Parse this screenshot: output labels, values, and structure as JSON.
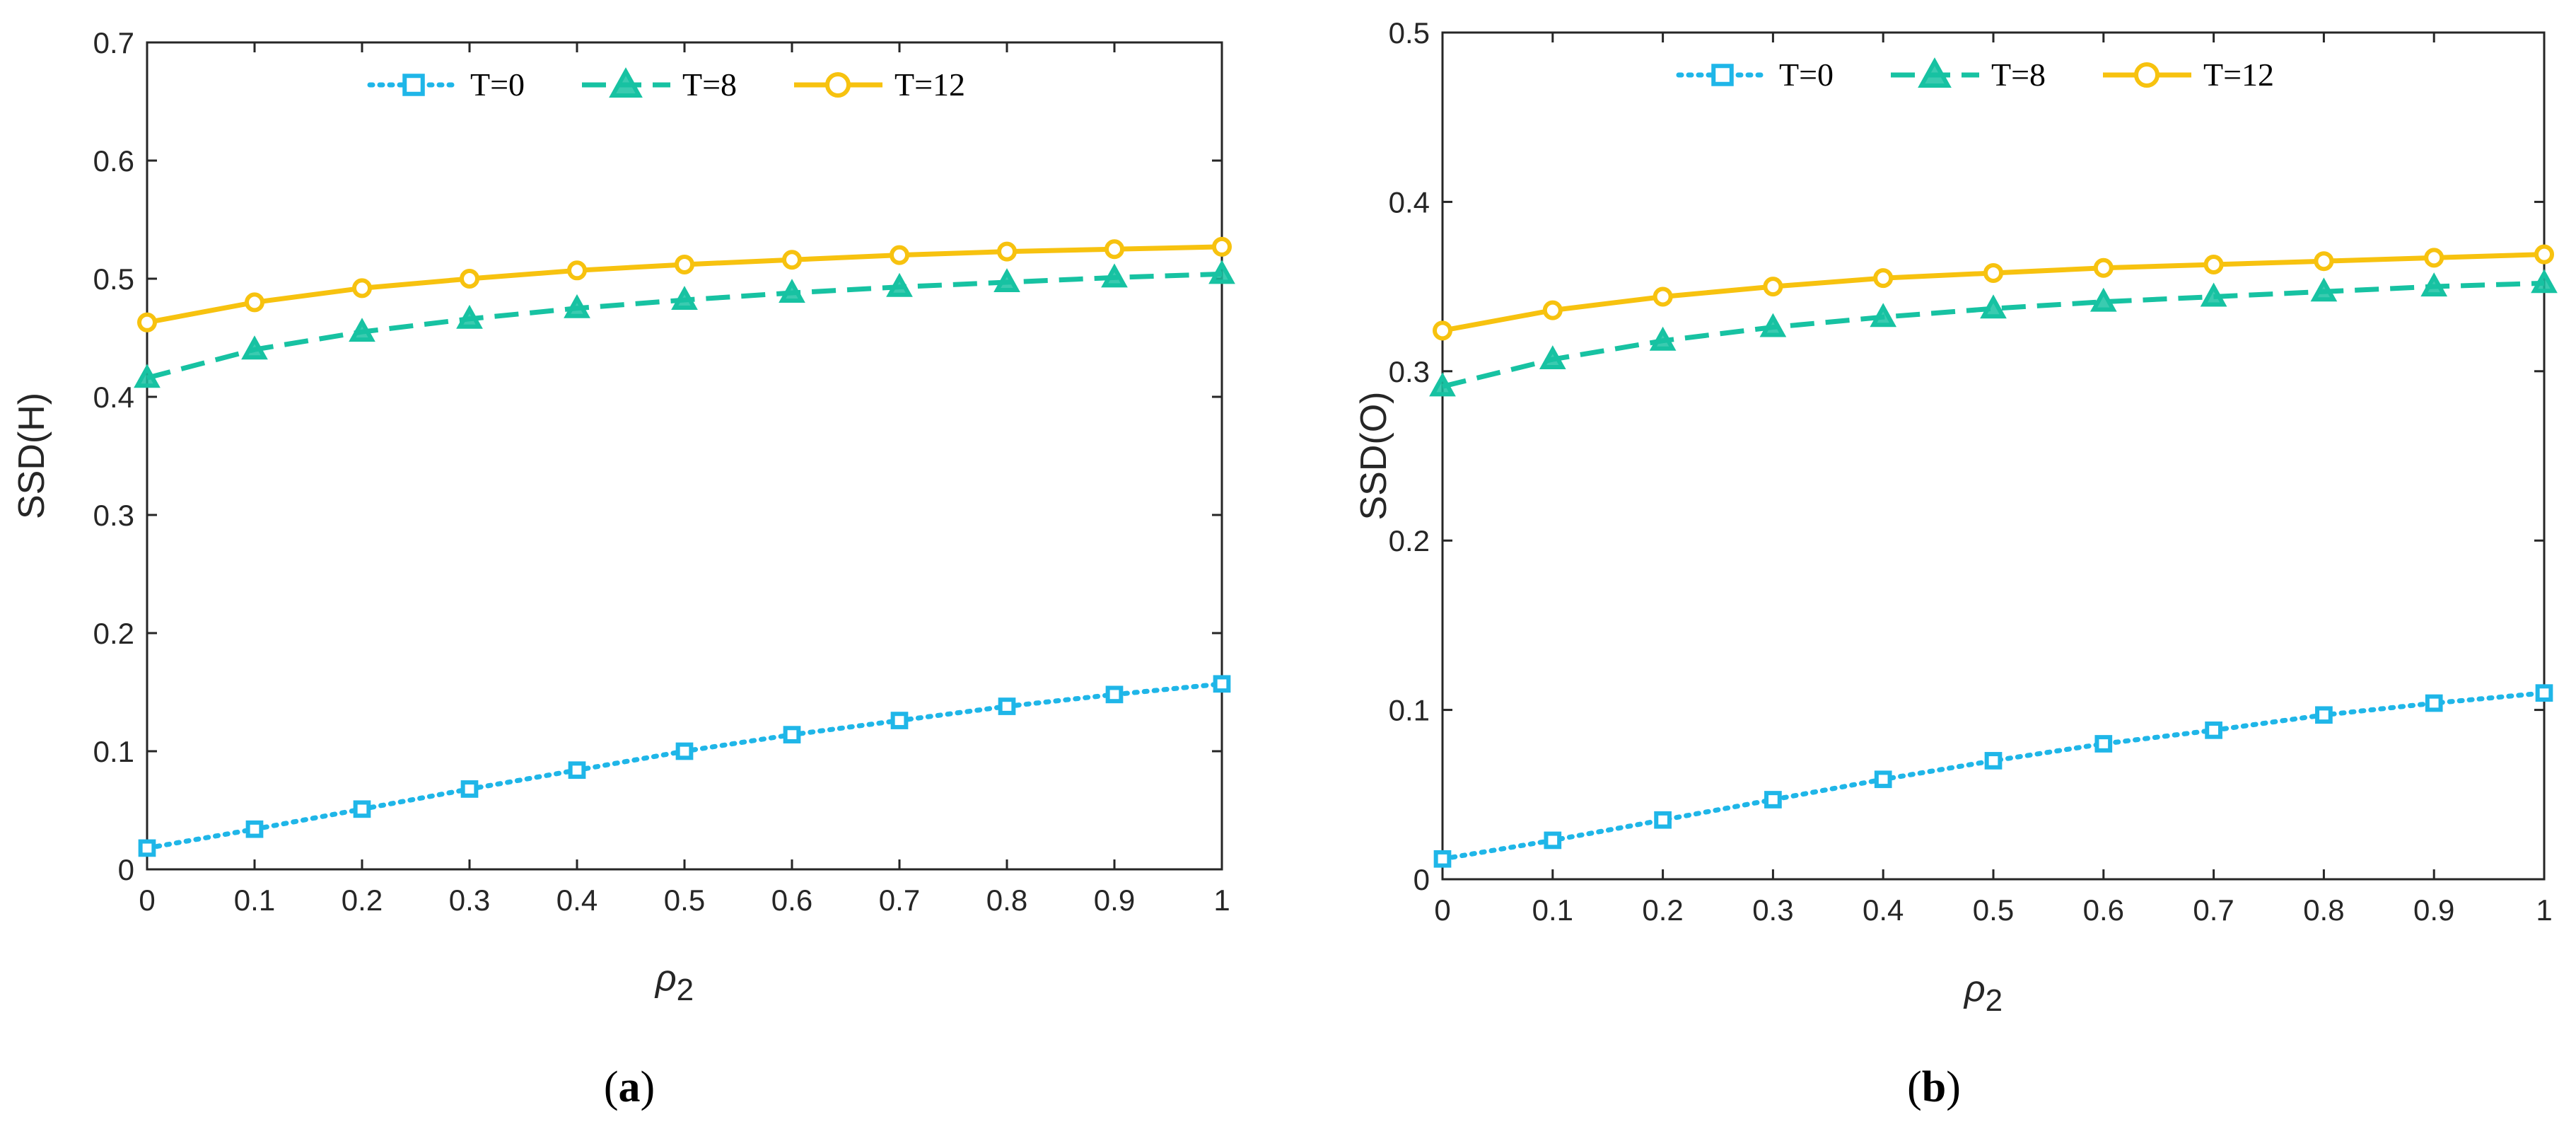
{
  "chart_data": [
    {
      "type": "line",
      "panel": "a",
      "ylabel": "SSD(H)",
      "xlabel_base": "ρ",
      "xlabel_sub": "2",
      "xlim": [
        0,
        1
      ],
      "ylim": [
        0,
        0.7
      ],
      "x": [
        0,
        0.1,
        0.2,
        0.3,
        0.4,
        0.5,
        0.6,
        0.7,
        0.8,
        0.9,
        1
      ],
      "xticks": [
        "0",
        "0.1",
        "0.2",
        "0.3",
        "0.4",
        "0.5",
        "0.6",
        "0.7",
        "0.8",
        "0.9",
        "1"
      ],
      "yticks": [
        "0",
        "0.1",
        "0.2",
        "0.3",
        "0.4",
        "0.5",
        "0.6",
        "0.7"
      ],
      "series": [
        {
          "name": "T=0",
          "color": "#1fb6e8",
          "marker": "square",
          "dash": "dotted",
          "values": [
            0.018,
            0.034,
            0.051,
            0.068,
            0.084,
            0.1,
            0.114,
            0.126,
            0.138,
            0.148,
            0.157
          ]
        },
        {
          "name": "T=8",
          "color": "#17c2a2",
          "marker": "triangle",
          "dash": "dashed",
          "values": [
            0.416,
            0.44,
            0.455,
            0.466,
            0.475,
            0.482,
            0.488,
            0.493,
            0.497,
            0.501,
            0.504
          ]
        },
        {
          "name": "T=12",
          "color": "#f7c20f",
          "marker": "circle",
          "dash": "solid",
          "values": [
            0.463,
            0.48,
            0.492,
            0.5,
            0.507,
            0.512,
            0.516,
            0.52,
            0.523,
            0.525,
            0.527
          ]
        }
      ],
      "legend": "top-center"
    },
    {
      "type": "line",
      "panel": "b",
      "ylabel": "SSD(O)",
      "xlabel_base": "ρ",
      "xlabel_sub": "2",
      "xlim": [
        0,
        1
      ],
      "ylim": [
        0,
        0.5
      ],
      "x": [
        0,
        0.1,
        0.2,
        0.3,
        0.4,
        0.5,
        0.6,
        0.7,
        0.8,
        0.9,
        1
      ],
      "xticks": [
        "0",
        "0.1",
        "0.2",
        "0.3",
        "0.4",
        "0.5",
        "0.6",
        "0.7",
        "0.8",
        "0.9",
        "1"
      ],
      "yticks": [
        "0",
        "0.1",
        "0.2",
        "0.3",
        "0.4",
        "0.5"
      ],
      "series": [
        {
          "name": "T=0",
          "color": "#1fb6e8",
          "marker": "square",
          "dash": "dotted",
          "values": [
            0.012,
            0.023,
            0.035,
            0.047,
            0.059,
            0.07,
            0.08,
            0.088,
            0.097,
            0.104,
            0.11
          ]
        },
        {
          "name": "T=8",
          "color": "#17c2a2",
          "marker": "triangle",
          "dash": "dashed",
          "values": [
            0.291,
            0.307,
            0.318,
            0.326,
            0.332,
            0.337,
            0.341,
            0.344,
            0.347,
            0.35,
            0.352
          ]
        },
        {
          "name": "T=12",
          "color": "#f7c20f",
          "marker": "circle",
          "dash": "solid",
          "values": [
            0.324,
            0.336,
            0.344,
            0.35,
            0.355,
            0.358,
            0.361,
            0.363,
            0.365,
            0.367,
            0.369
          ]
        }
      ],
      "legend": "top-center"
    }
  ],
  "captions": [
    {
      "open": "(",
      "letter": "a",
      "close": ")"
    },
    {
      "open": "(",
      "letter": "b",
      "close": ")"
    }
  ]
}
